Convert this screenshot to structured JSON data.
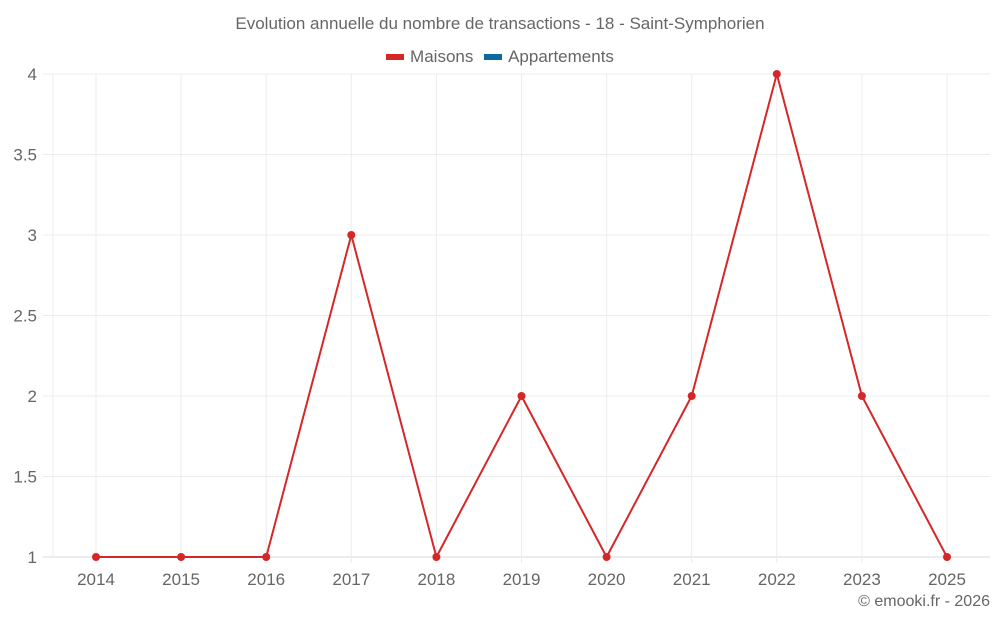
{
  "chart_data": {
    "type": "line",
    "title": "Evolution annuelle du nombre de transactions - 18 - Saint-Symphorien",
    "categories": [
      "2014",
      "2015",
      "2016",
      "2017",
      "2018",
      "2019",
      "2020",
      "2021",
      "2022",
      "2023",
      "2025"
    ],
    "series": [
      {
        "name": "Maisons",
        "color": "#d62728",
        "values": [
          1,
          1,
          1,
          3,
          1,
          2,
          1,
          2,
          4,
          2,
          1
        ]
      },
      {
        "name": "Appartements",
        "color": "#0b6aa2",
        "values": []
      }
    ],
    "xlabel": "",
    "ylabel": "",
    "ylim": [
      1,
      4
    ],
    "yticks": [
      "1",
      "1.5",
      "2",
      "2.5",
      "3",
      "3.5",
      "4"
    ],
    "grid": true,
    "legend_position": "top"
  },
  "title": "Evolution annuelle du nombre de transactions - 18 - Saint-Symphorien",
  "legend": {
    "maisons": "Maisons",
    "appartements": "Appartements",
    "maisons_color": "#d62728",
    "appartements_color": "#0b6aa2"
  },
  "credit": "© emooki.fr - 2026"
}
